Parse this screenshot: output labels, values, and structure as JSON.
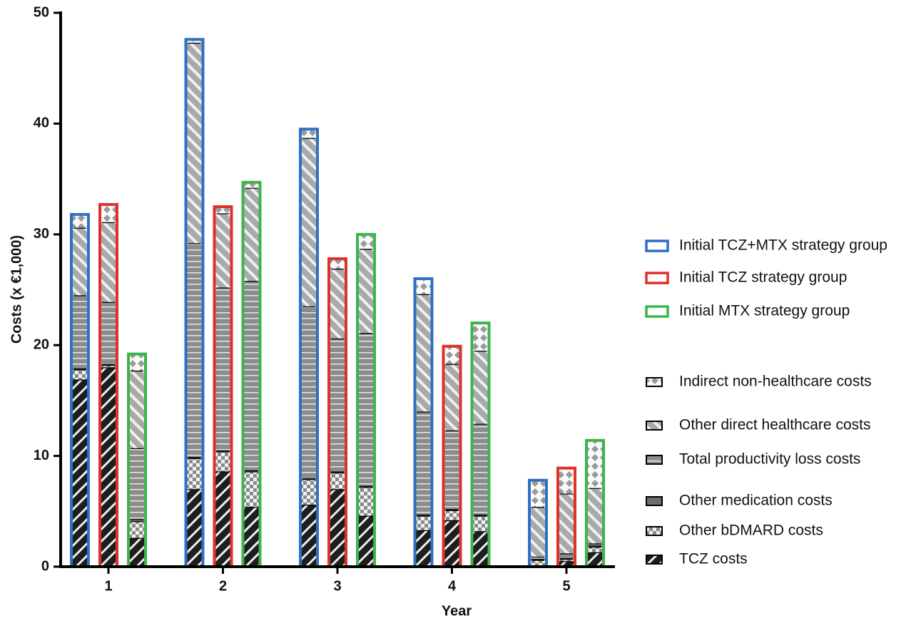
{
  "chart_data": {
    "type": "grouped-stacked-bar",
    "x_label": "Year",
    "y_label": "Costs (x €1,000)",
    "categories": [
      "1",
      "2",
      "3",
      "4",
      "5"
    ],
    "ylim": [
      0,
      50
    ],
    "yticks": [
      0,
      10,
      20,
      30,
      40,
      50
    ],
    "series": [
      {
        "name": "TCZ costs"
      },
      {
        "name": "Other bDMARD costs"
      },
      {
        "name": "Other medication costs"
      },
      {
        "name": "Total productivity loss costs"
      },
      {
        "name": "Other direct healthcare costs"
      },
      {
        "name": "Indirect non-healthcare costs"
      }
    ],
    "groups": [
      {
        "name": "Initial TCZ+MTX strategy group",
        "color": "#2f6fc4",
        "values": [
          [
            16.9,
            0.9,
            0.1,
            6.6,
            6.1,
            1.2
          ],
          [
            7.0,
            2.8,
            0.1,
            19.3,
            18.1,
            0.3
          ],
          [
            5.6,
            2.3,
            0.1,
            15.5,
            15.2,
            0.8
          ],
          [
            3.3,
            1.3,
            0.1,
            9.3,
            10.6,
            1.4
          ],
          [
            0.1,
            0.5,
            0.1,
            0.2,
            4.5,
            2.4
          ]
        ]
      },
      {
        "name": "Initial TCZ strategy group",
        "color": "#e0302a",
        "values": [
          [
            18.0,
            0.2,
            0.1,
            5.6,
            7.2,
            1.6
          ],
          [
            8.6,
            1.8,
            0.1,
            14.7,
            6.7,
            0.6
          ],
          [
            7.0,
            1.5,
            0.1,
            12.0,
            6.3,
            0.9
          ],
          [
            4.2,
            0.9,
            0.1,
            7.1,
            6.0,
            1.6
          ],
          [
            0.5,
            0.2,
            0.1,
            0.4,
            5.4,
            2.3
          ]
        ]
      },
      {
        "name": "Initial MTX strategy group",
        "color": "#3cb54a",
        "values": [
          [
            2.6,
            1.5,
            0.2,
            6.4,
            7.0,
            1.5
          ],
          [
            5.4,
            3.2,
            0.1,
            17.1,
            8.4,
            0.5
          ],
          [
            4.6,
            2.6,
            0.1,
            13.8,
            7.6,
            1.3
          ],
          [
            3.2,
            1.4,
            0.1,
            8.2,
            6.6,
            2.5
          ],
          [
            1.3,
            0.5,
            0.1,
            0.2,
            5.0,
            4.3
          ]
        ]
      }
    ]
  }
}
